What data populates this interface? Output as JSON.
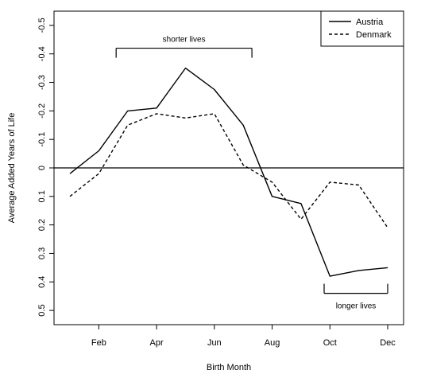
{
  "chart_data": {
    "type": "line",
    "title": "",
    "xlabel": "Birth Month",
    "ylabel": "Average Added Years of Life",
    "x": [
      1,
      2,
      3,
      4,
      5,
      6,
      7,
      8,
      9,
      10,
      11,
      12
    ],
    "x_tick_values": [
      2,
      4,
      6,
      8,
      10,
      12
    ],
    "x_tick_labels": [
      "Feb",
      "Apr",
      "Jun",
      "Aug",
      "Oct",
      "Dec"
    ],
    "ylim": [
      0.55,
      -0.55
    ],
    "y_reversed": true,
    "y_ticks": [
      -0.5,
      -0.4,
      -0.3,
      -0.2,
      -0.1,
      0,
      0.1,
      0.2,
      0.3,
      0.4,
      0.5
    ],
    "y_tick_labels": [
      "-0.5",
      "-0.4",
      "-0.3",
      "-0.2",
      "-0.1",
      "0",
      "0.1",
      "0.2",
      "0.3",
      "0.4",
      "0.5"
    ],
    "reference_line": 0,
    "series": [
      {
        "name": "Austria",
        "style": "solid",
        "color": "#000000",
        "values": [
          0.02,
          -0.06,
          -0.2,
          -0.21,
          -0.35,
          -0.275,
          -0.15,
          0.1,
          0.125,
          0.38,
          0.36,
          0.35
        ]
      },
      {
        "name": "Denmark",
        "style": "dashed",
        "color": "#000000",
        "values": [
          0.1,
          0.02,
          -0.15,
          -0.19,
          -0.175,
          -0.19,
          -0.01,
          0.05,
          0.18,
          0.05,
          0.06,
          0.21
        ]
      }
    ],
    "annotations": [
      {
        "text": "shorter lives",
        "bracket": [
          2.6,
          7.3
        ],
        "y": -0.42,
        "orientation": "down"
      },
      {
        "text": "longer lives",
        "bracket": [
          9.8,
          12
        ],
        "y": 0.44,
        "orientation": "up"
      }
    ],
    "legend": {
      "position": "top-right"
    },
    "grid": false
  }
}
